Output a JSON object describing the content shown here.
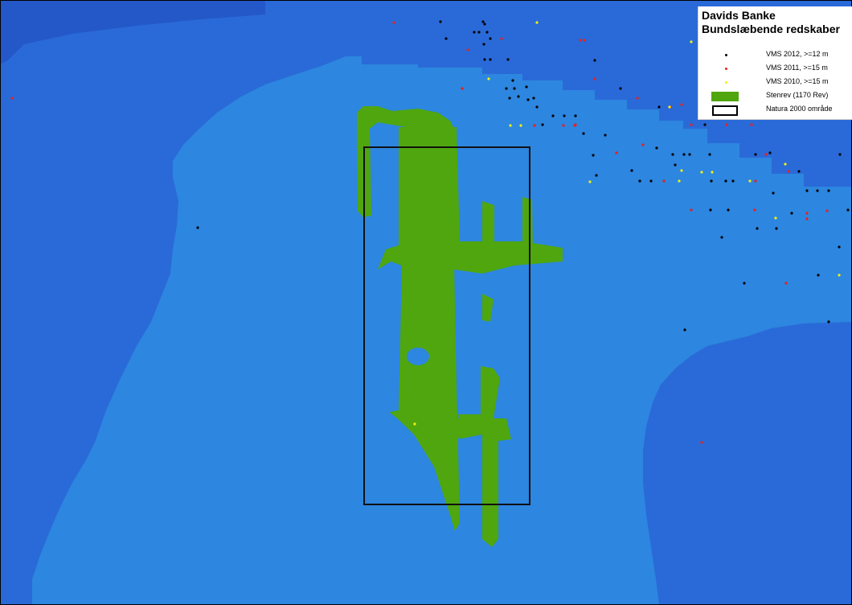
{
  "legend": {
    "title_line1": "Davids Banke",
    "title_line2": "Bundslæbende redskaber",
    "items": [
      {
        "label": "VMS 2012, >=12 m",
        "symbol": "dot",
        "color": "#000000"
      },
      {
        "label": "VMS 2011, >=15 m",
        "symbol": "dot",
        "color": "#e8211c"
      },
      {
        "label": "VMS 2010, >=15 m",
        "symbol": "dot",
        "color": "#f2f20a"
      },
      {
        "label": "Stenrev (1170 Rev)",
        "symbol": "fill",
        "color": "#4fa60f"
      },
      {
        "label": "Natura 2000 område",
        "symbol": "outline",
        "color": "#000000"
      }
    ]
  },
  "colors": {
    "deep": "#2458c8",
    "mid": "#2a6ad8",
    "shallow": "#2d86df",
    "reef": "#4fa60f"
  }
}
